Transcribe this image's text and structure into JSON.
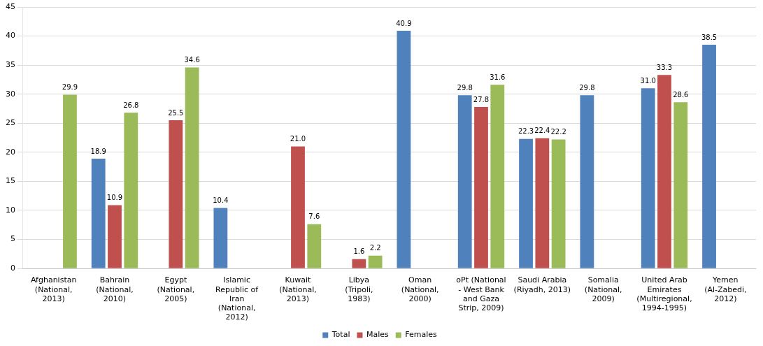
{
  "chart_data": {
    "type": "bar",
    "categories": [
      "Afghanistan (National, 2013)",
      "Bahrain (National, 2010)",
      "Egypt (National, 2005)",
      "Islamic Republic of Iran (National, 2012)",
      "Kuwait (National, 2013)",
      "Libya (Tripoli, 1983)",
      "Oman (National, 2000)",
      "oPt (National - West Bank and Gaza Strip, 2009)",
      "Saudi Arabia (Riyadh, 2013)",
      "Somalia (National, 2009)",
      "United Arab Emirates (Multiregional, 1994-1995)",
      "Yemen (Al-Zabedi, 2012)"
    ],
    "series": [
      {
        "name": "Total",
        "color": "#4f81bd",
        "values": [
          null,
          18.9,
          null,
          10.4,
          null,
          null,
          40.9,
          29.8,
          22.3,
          29.8,
          31.0,
          38.5
        ],
        "value_labels": [
          null,
          "18.9",
          null,
          "10.4",
          null,
          null,
          "40.9",
          "29.8",
          "22.3",
          "29.8",
          "31.0",
          "38.5"
        ]
      },
      {
        "name": "Males",
        "color": "#c0504d",
        "values": [
          null,
          10.9,
          25.5,
          null,
          21.0,
          1.6,
          null,
          27.8,
          22.4,
          null,
          33.3,
          null
        ],
        "value_labels": [
          null,
          "10.9",
          "25.5",
          null,
          "21.0",
          "1.6",
          null,
          "27.8",
          "22.4",
          null,
          "33.3",
          null
        ]
      },
      {
        "name": "Females",
        "color": "#9bbb59",
        "values": [
          29.9,
          26.8,
          34.6,
          null,
          7.6,
          2.2,
          null,
          31.6,
          22.2,
          null,
          28.6,
          null
        ],
        "value_labels": [
          "29.9",
          "26.8",
          "34.6",
          null,
          "7.6",
          "2.2",
          null,
          "31.6",
          "22.2",
          null,
          "28.6",
          null
        ]
      }
    ],
    "ylim": [
      0,
      45
    ],
    "yticks": [
      0,
      5,
      10,
      15,
      20,
      25,
      30,
      35,
      40,
      45
    ],
    "grid": "y",
    "legend": "bottom"
  }
}
